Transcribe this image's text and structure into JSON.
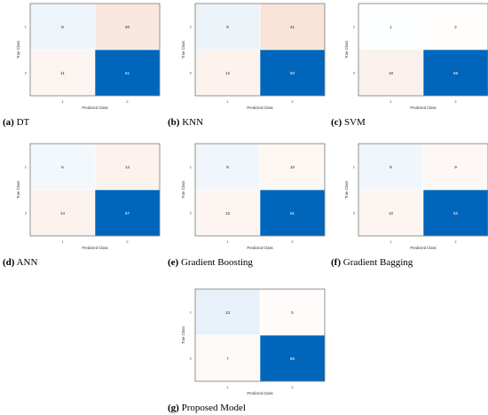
{
  "colors": {
    "low": "#ffffff",
    "mid_true": "#c5dcf0",
    "high_true": "#0066bb",
    "low_false": "#fbf0ea",
    "high_false": "#eeac8f",
    "border": "#4d4d4d"
  },
  "chart_data": [
    {
      "type": "heatmap",
      "letter": "(a)",
      "name": "DT",
      "xlabel": "Predicted Class",
      "ylabel": "True Class",
      "x_ticks": [
        "1",
        "2"
      ],
      "y_ticks": [
        "1",
        "2"
      ],
      "matrix": [
        [
          8,
          20
        ],
        [
          11,
          51
        ]
      ]
    },
    {
      "type": "heatmap",
      "letter": "(b)",
      "name": "KNN",
      "xlabel": "Predicted Class",
      "ylabel": "True Class",
      "x_ticks": [
        "1",
        "2"
      ],
      "y_ticks": [
        "1",
        "2"
      ],
      "matrix": [
        [
          8,
          21
        ],
        [
          12,
          50
        ]
      ]
    },
    {
      "type": "heatmap",
      "letter": "(c)",
      "name": "SVM",
      "xlabel": "Predicted Class",
      "ylabel": "True Class",
      "x_ticks": [
        "1",
        "2"
      ],
      "y_ticks": [
        "1",
        "2"
      ],
      "matrix": [
        [
          1,
          2
        ],
        [
          19,
          69
        ]
      ]
    },
    {
      "type": "heatmap",
      "letter": "(d)",
      "name": "ANN",
      "xlabel": "Predicted Class",
      "ylabel": "True Class",
      "x_ticks": [
        "1",
        "2"
      ],
      "y_ticks": [
        "1",
        "2"
      ],
      "matrix": [
        [
          6,
          14
        ],
        [
          14,
          57
        ]
      ]
    },
    {
      "type": "heatmap",
      "letter": "(e)",
      "name": "Gradient Boosting",
      "xlabel": "Predicted Class",
      "ylabel": "True Class",
      "x_ticks": [
        "1",
        "2"
      ],
      "y_ticks": [
        "1",
        "2"
      ],
      "matrix": [
        [
          8,
          10
        ],
        [
          12,
          61
        ]
      ]
    },
    {
      "type": "heatmap",
      "letter": "(f)",
      "name": "Gradient Bagging",
      "xlabel": "Predicted Class",
      "ylabel": "True Class",
      "x_ticks": [
        "1",
        "2"
      ],
      "y_ticks": [
        "1",
        "2"
      ],
      "matrix": [
        [
          8,
          9
        ],
        [
          12,
          62
        ]
      ]
    },
    {
      "type": "heatmap",
      "letter": "(g)",
      "name": "Proposed Model",
      "xlabel": "Predicted Class",
      "ylabel": "True Class",
      "x_ticks": [
        "1",
        "2"
      ],
      "y_ticks": [
        "1",
        "2"
      ],
      "matrix": [
        [
          13,
          5
        ],
        [
          7,
          66
        ]
      ]
    }
  ]
}
